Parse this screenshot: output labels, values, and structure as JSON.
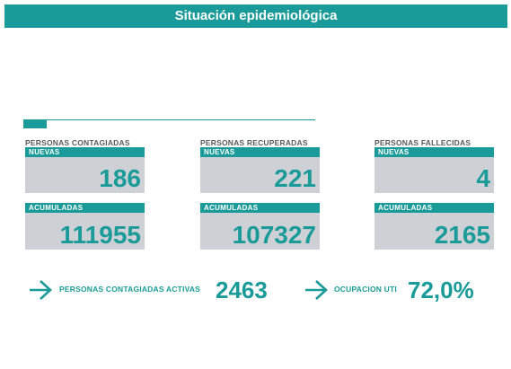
{
  "header": {
    "title": "Situación epidemiológica"
  },
  "columns": [
    {
      "title": "PERSONAS CONTAGIADAS",
      "nuevas_label": "NUEVAS",
      "nuevas_value": "186",
      "acumuladas_label": "ACUMULADAS",
      "acumuladas_value": "111955"
    },
    {
      "title": "PERSONAS RECUPERADAS",
      "nuevas_label": "NUEVAS",
      "nuevas_value": "221",
      "acumuladas_label": "ACUMULADAS",
      "acumuladas_value": "107327"
    },
    {
      "title": "PERSONAS FALLECIDAS",
      "nuevas_label": "NUEVAS",
      "nuevas_value": "4",
      "acumuladas_label": "ACUMULADAS",
      "acumuladas_value": "2165"
    }
  ],
  "footer": {
    "activas_label": "PERSONAS CONTAGIADAS ACTIVAS",
    "activas_value": "2463",
    "uti_label": "OCUPACION UTI",
    "uti_value": "72,0%"
  },
  "colors": {
    "accent": "#1a9a98",
    "box": "#cdd1d6",
    "text": "#555b61"
  },
  "icons": {
    "footer_arrow": "arrow-right-icon"
  }
}
